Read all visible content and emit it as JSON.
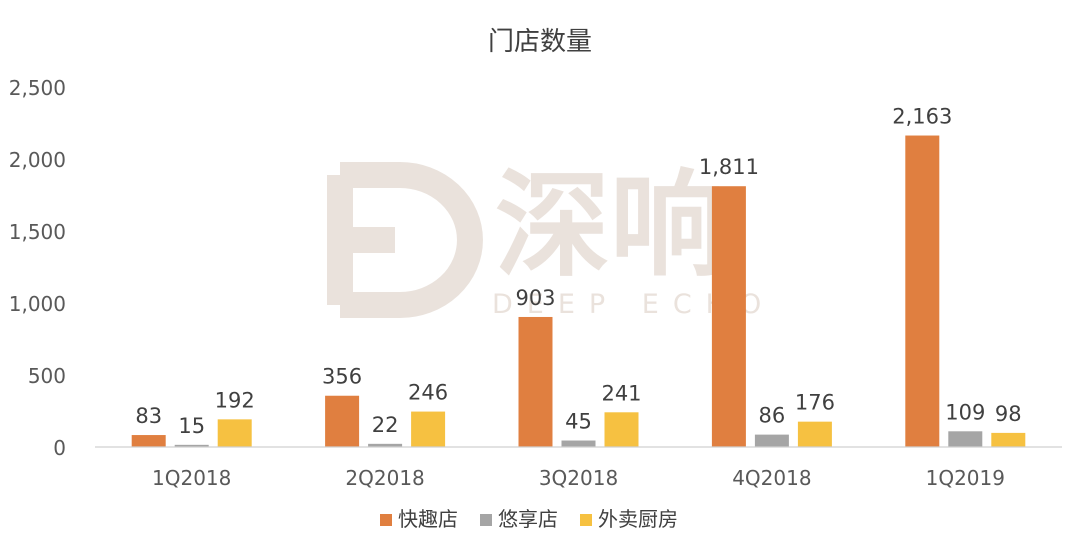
{
  "chart_data": {
    "type": "bar",
    "title": "门店数量",
    "categories": [
      "1Q2018",
      "2Q2018",
      "3Q2018",
      "4Q2018",
      "1Q2019"
    ],
    "series": [
      {
        "name": "快趣店",
        "color": "#E07F40",
        "values": [
          83,
          356,
          903,
          1811,
          2163
        ]
      },
      {
        "name": "悠享店",
        "color": "#A5A5A5",
        "values": [
          15,
          22,
          45,
          86,
          109
        ]
      },
      {
        "name": "外卖厨房",
        "color": "#F6C141",
        "values": [
          192,
          246,
          241,
          176,
          98
        ]
      }
    ],
    "ylim": [
      0,
      2500
    ],
    "yticks": [
      "0",
      "500",
      "1,000",
      "1,500",
      "2,000",
      "2,500"
    ],
    "grid": false,
    "legend": "bottom",
    "data_labels": true
  },
  "watermark": {
    "cn": "深响",
    "en": "DEEP ECHO",
    "color": "#D9CBC0"
  }
}
